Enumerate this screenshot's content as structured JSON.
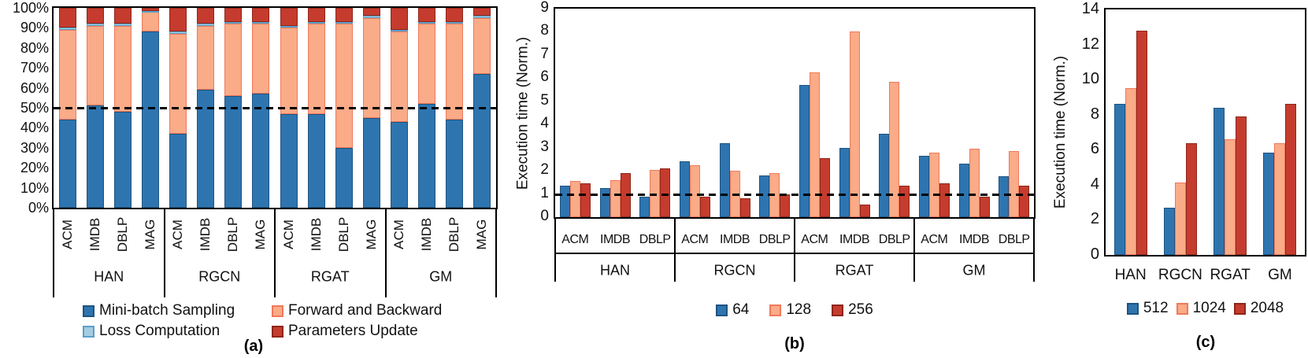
{
  "figure": {
    "captions": {
      "a": "(a)",
      "b": "(b)",
      "c": "(c)"
    }
  },
  "palette": {
    "blue": {
      "fill": "#2E75B0",
      "edge": "#1F5380"
    },
    "salmon": {
      "fill": "#FAAB88",
      "edge": "#F0795B"
    },
    "lightblue": {
      "fill": "#A5CCE0",
      "edge": "#5B9FC9"
    },
    "red": {
      "fill": "#C53C2E",
      "edge": "#8E2619"
    }
  },
  "chart_data": [
    {
      "id": "a",
      "type": "stacked_bar_100pct",
      "caption": "(a)",
      "y_tick_labels": [
        "100%",
        "90%",
        "80%",
        "70%",
        "60%",
        "50%",
        "40%",
        "30%",
        "20%",
        "10%",
        "0%"
      ],
      "groups": [
        "HAN",
        "RGCN",
        "RGAT",
        "GM"
      ],
      "categories": [
        "ACM",
        "IMDB",
        "DBLP",
        "MAG"
      ],
      "reference_line_pct": 50,
      "legend_rows": [
        [
          "Mini-batch Sampling",
          "Forward and Backward"
        ],
        [
          "Loss Computation",
          "Parameters Update"
        ]
      ],
      "series": [
        {
          "name": "Mini-batch Sampling",
          "color": "blue",
          "values_pct": [
            44,
            51,
            48,
            88,
            37,
            59,
            56,
            57,
            47,
            47,
            30,
            45,
            43,
            52,
            44,
            67
          ]
        },
        {
          "name": "Forward and Backward",
          "color": "salmon",
          "values_pct": [
            45,
            40,
            43,
            10,
            50,
            32,
            36,
            35,
            43,
            45,
            62,
            50,
            45,
            40,
            48,
            28
          ]
        },
        {
          "name": "Loss Computation",
          "color": "lightblue",
          "values_pct": [
            1,
            1,
            1,
            0.5,
            1,
            1,
            1,
            1,
            1,
            1,
            1,
            1,
            1,
            1,
            1,
            1
          ]
        },
        {
          "name": "Parameters Update",
          "color": "red",
          "values_pct": [
            10,
            8,
            8,
            1.5,
            12,
            8,
            7,
            7,
            9,
            7,
            7,
            4,
            11,
            7,
            7,
            4
          ]
        }
      ]
    },
    {
      "id": "b",
      "type": "grouped_bar",
      "caption": "(b)",
      "ylabel": "Execution time (Norm.)",
      "y_ticks": [
        "0",
        "1",
        "2",
        "3",
        "4",
        "5",
        "6",
        "7",
        "8",
        "9"
      ],
      "ymax": 9,
      "groups": [
        "HAN",
        "RGCN",
        "RGAT",
        "GM"
      ],
      "categories": [
        "ACM",
        "IMDB",
        "DBLP"
      ],
      "reference_line": 1,
      "series": [
        {
          "name": "64",
          "color": "blue",
          "values": [
            1.35,
            1.25,
            0.9,
            2.4,
            3.2,
            1.8,
            5.7,
            3.0,
            3.6,
            2.65,
            2.3,
            1.75
          ]
        },
        {
          "name": "128",
          "color": "salmon",
          "values": [
            1.55,
            1.6,
            2.05,
            2.25,
            2.0,
            1.9,
            6.25,
            8.0,
            5.85,
            2.8,
            2.95,
            2.85
          ]
        },
        {
          "name": "256",
          "color": "red",
          "values": [
            1.45,
            1.9,
            2.1,
            0.9,
            0.8,
            1.0,
            2.55,
            0.55,
            1.35,
            1.45,
            0.9,
            1.35
          ]
        }
      ]
    },
    {
      "id": "c",
      "type": "grouped_bar",
      "caption": "(c)",
      "ylabel": "Execution time (Norm.)",
      "y_ticks": [
        "0",
        "2",
        "4",
        "6",
        "8",
        "10",
        "12",
        "14"
      ],
      "ymax": 14,
      "groups": [
        "HAN",
        "RGCN",
        "RGAT",
        "GM"
      ],
      "categories": [
        ""
      ],
      "series": [
        {
          "name": "512",
          "color": "blue",
          "values": [
            8.6,
            2.7,
            8.4,
            5.85
          ]
        },
        {
          "name": "1024",
          "color": "salmon",
          "values": [
            9.5,
            4.15,
            6.6,
            6.35
          ]
        },
        {
          "name": "2048",
          "color": "red",
          "values": [
            12.8,
            6.35,
            7.9,
            8.6
          ]
        }
      ]
    }
  ]
}
